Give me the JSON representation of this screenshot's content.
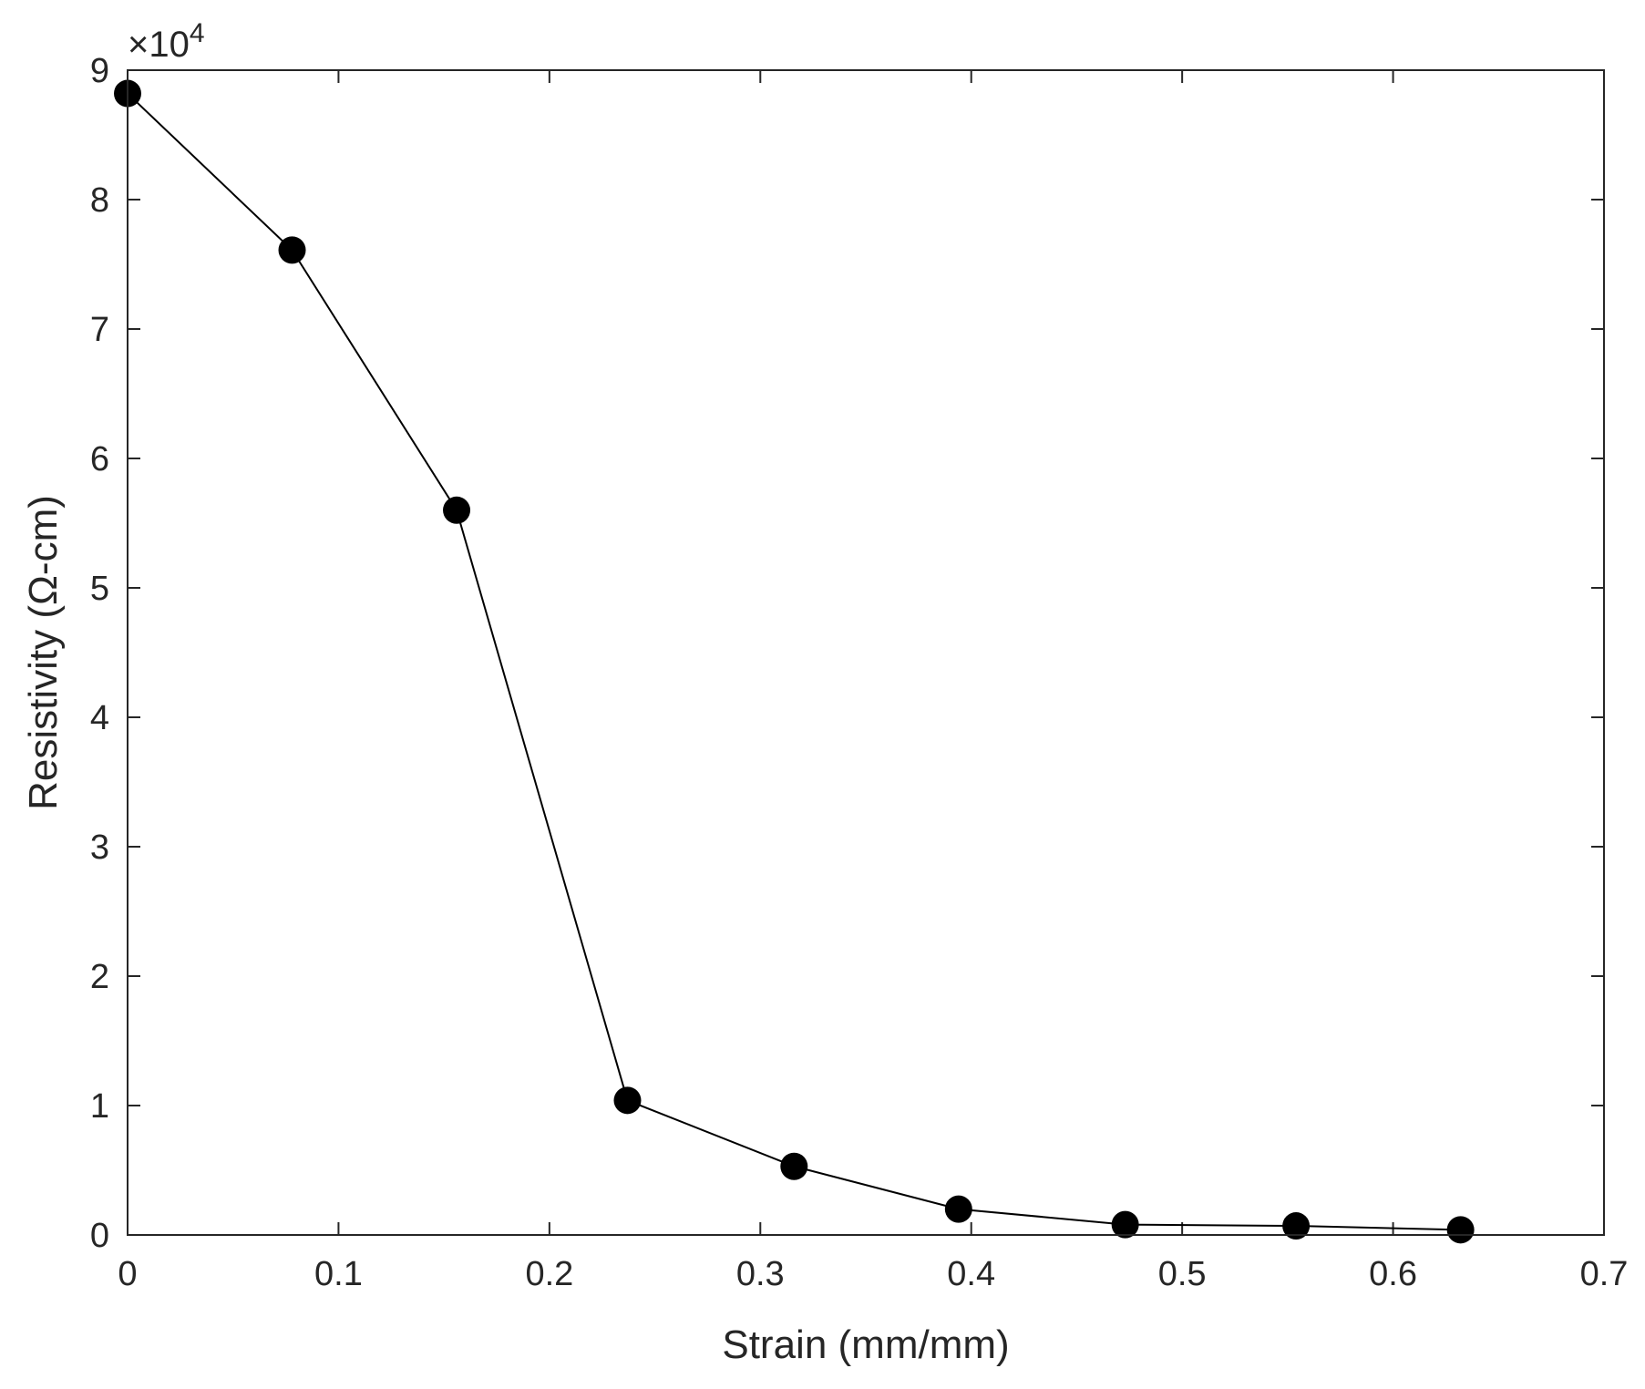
{
  "chart_data": {
    "type": "line",
    "title": "",
    "xlabel": "Strain (mm/mm)",
    "ylabel": "Resistivity (Ω-cm)",
    "y_multiplier_base": "×10",
    "y_multiplier_exp": "4",
    "xlim": [
      0,
      0.7
    ],
    "ylim": [
      0,
      9
    ],
    "xticks": [
      "0",
      "0.1",
      "0.2",
      "0.3",
      "0.4",
      "0.5",
      "0.6",
      "0.7"
    ],
    "yticks": [
      "0",
      "1",
      "2",
      "3",
      "4",
      "5",
      "6",
      "7",
      "8",
      "9"
    ],
    "grid": false,
    "series": [
      {
        "x": [
          0.0,
          0.078,
          0.156,
          0.237,
          0.316,
          0.394,
          0.473,
          0.554,
          0.632
        ],
        "y": [
          8.82,
          7.61,
          5.6,
          1.04,
          0.53,
          0.2,
          0.08,
          0.07,
          0.04
        ],
        "color": "#000000",
        "marker": "filled-circle"
      }
    ]
  }
}
